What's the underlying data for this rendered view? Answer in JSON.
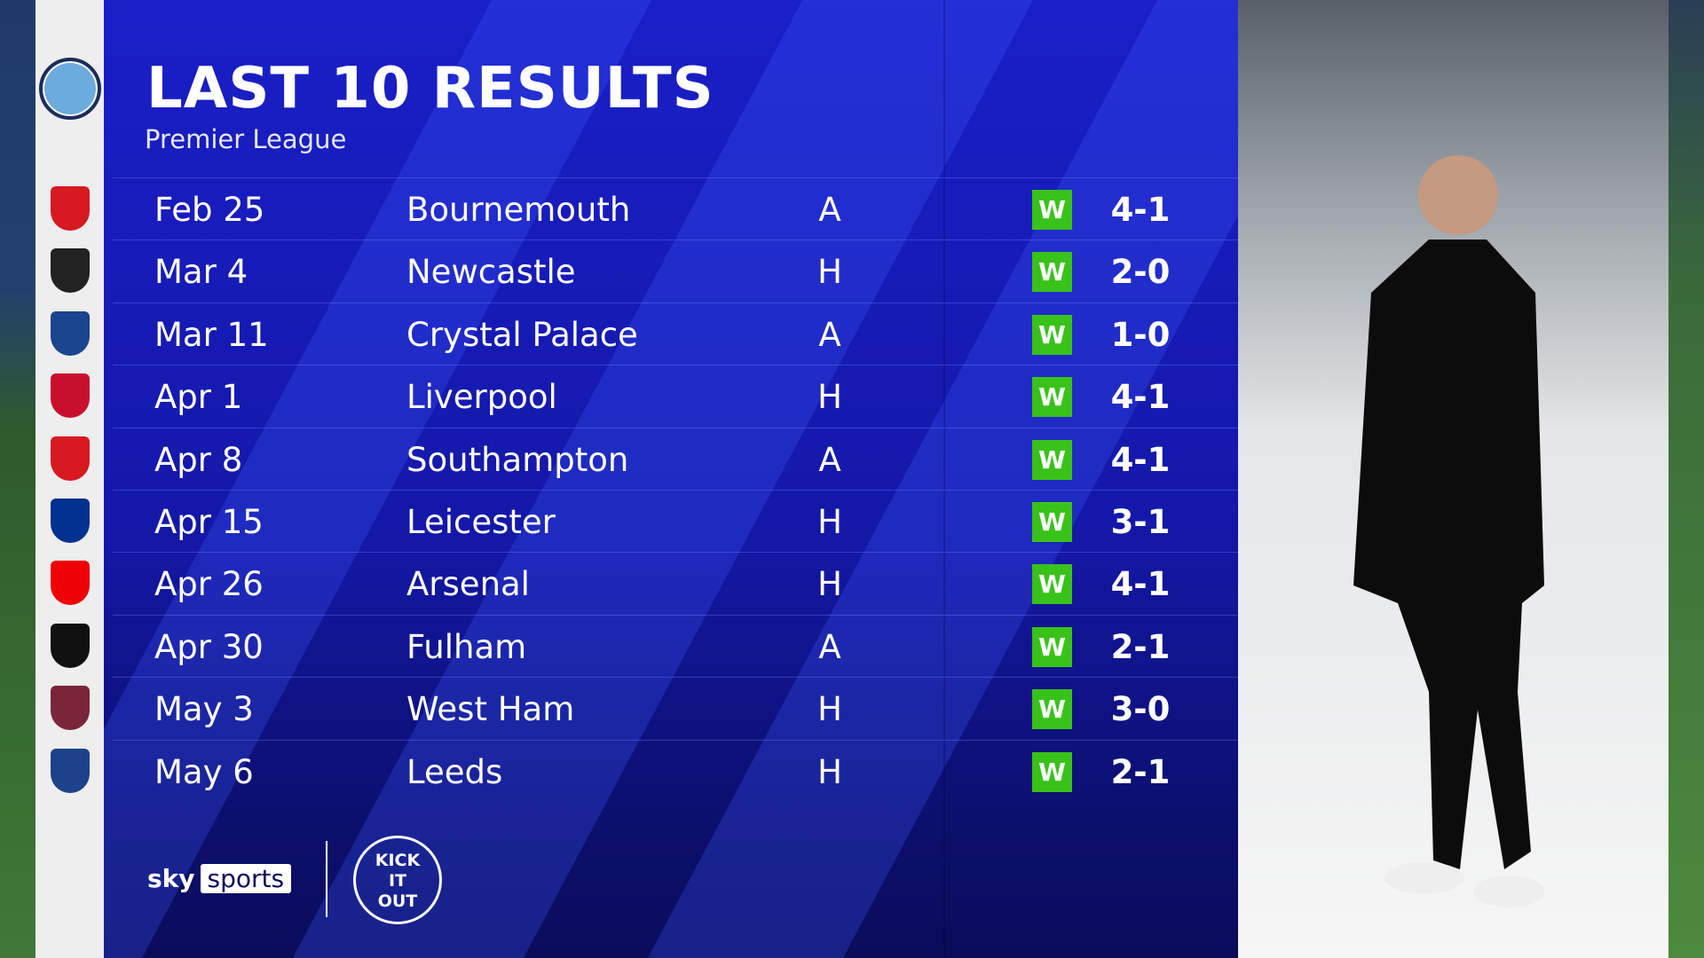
{
  "title": "LAST 10 RESULTS",
  "subtitle": "Premier League",
  "team_crest": "manchester-city-crest",
  "colors": {
    "panel": "#1418a8",
    "win_badge": "#39c21a",
    "crest_strip": "#eeeeee"
  },
  "results": [
    {
      "date": "Feb 25",
      "opponent": "Bournemouth",
      "venue": "A",
      "result": "W",
      "score": "4-1",
      "crest_color": "#d71920"
    },
    {
      "date": "Mar 4",
      "opponent": "Newcastle",
      "venue": "H",
      "result": "W",
      "score": "2-0",
      "crest_color": "#222222"
    },
    {
      "date": "Mar 11",
      "opponent": "Crystal Palace",
      "venue": "A",
      "result": "W",
      "score": "1-0",
      "crest_color": "#1b458f"
    },
    {
      "date": "Apr 1",
      "opponent": "Liverpool",
      "venue": "H",
      "result": "W",
      "score": "4-1",
      "crest_color": "#c8102e"
    },
    {
      "date": "Apr 8",
      "opponent": "Southampton",
      "venue": "A",
      "result": "W",
      "score": "4-1",
      "crest_color": "#d71920"
    },
    {
      "date": "Apr 15",
      "opponent": "Leicester",
      "venue": "H",
      "result": "W",
      "score": "3-1",
      "crest_color": "#003090"
    },
    {
      "date": "Apr 26",
      "opponent": "Arsenal",
      "venue": "H",
      "result": "W",
      "score": "4-1",
      "crest_color": "#ef0107"
    },
    {
      "date": "Apr 30",
      "opponent": "Fulham",
      "venue": "A",
      "result": "W",
      "score": "2-1",
      "crest_color": "#111111"
    },
    {
      "date": "May 3",
      "opponent": "West Ham",
      "venue": "H",
      "result": "W",
      "score": "3-0",
      "crest_color": "#7a263a"
    },
    {
      "date": "May 6",
      "opponent": "Leeds",
      "venue": "H",
      "result": "W",
      "score": "2-1",
      "crest_color": "#1d428a"
    }
  ],
  "footer": {
    "sky": "sky",
    "sports": "sports",
    "kick_it_out": "KICK IT OUT"
  }
}
